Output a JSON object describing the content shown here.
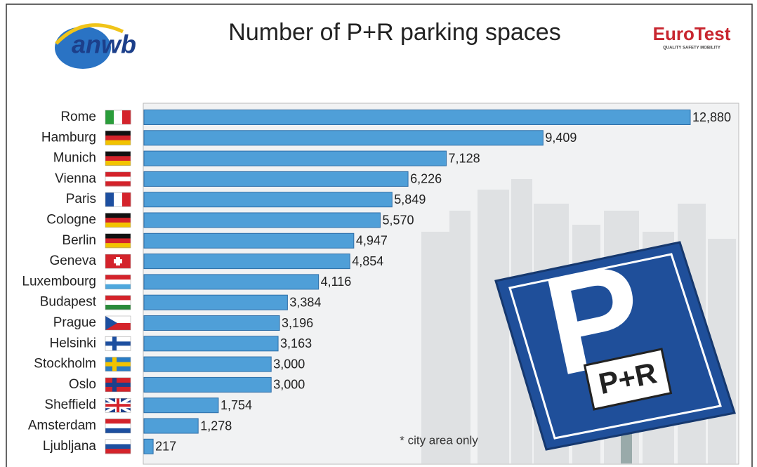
{
  "chart_data": {
    "type": "bar",
    "orientation": "horizontal",
    "title": "Number of P+R parking spaces",
    "logo_left": "anwb",
    "logo_right": "EuroTest",
    "logo_right_tagline": "QUALITY SAFETY MOBILITY",
    "footnote": "* city area only",
    "sign_letter": "P",
    "sign_label": "P+R",
    "categories": [
      "Rome",
      "Hamburg",
      "Munich",
      "Vienna",
      "Paris",
      "Cologne",
      "Berlin",
      "Geneva",
      "Luxembourg",
      "Budapest",
      "Prague",
      "Helsinki",
      "Stockholm",
      "Oslo",
      "Sheffield",
      "Amsterdam",
      "Ljubljana"
    ],
    "values": [
      12880,
      9409,
      7128,
      6226,
      5849,
      5570,
      4947,
      4854,
      4116,
      3384,
      3196,
      3163,
      3000,
      3000,
      1754,
      1278,
      217
    ],
    "value_labels": [
      "12,880",
      "9,409",
      "7,128",
      "6,226",
      "5,849",
      "5,570",
      "4,947",
      "4,854",
      "4,116",
      "3,384",
      "3,196",
      "3,163",
      "3,000",
      "3,000",
      "1,754",
      "1,278",
      "217"
    ],
    "color": "#4f9fd8"
  }
}
